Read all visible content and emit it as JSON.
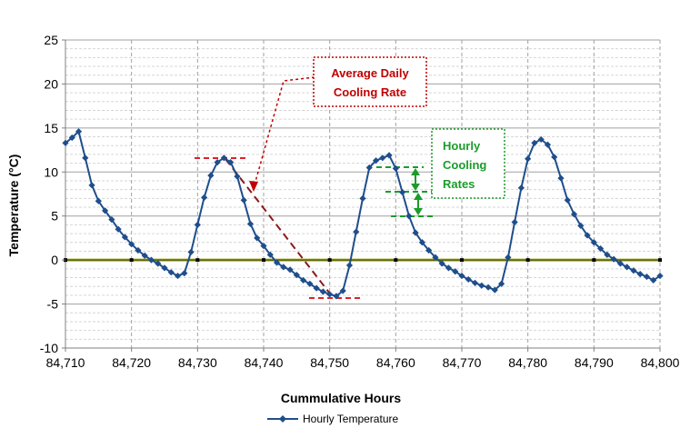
{
  "chart_data": {
    "type": "line",
    "xlabel": "Cummulative Hours",
    "ylabel": "Temperature (°C)",
    "xlim": [
      84710,
      84800
    ],
    "ylim": [
      -10,
      25
    ],
    "x_ticks": [
      "84,710",
      "84,720",
      "84,730",
      "84,740",
      "84,750",
      "84,760",
      "84,770",
      "84,780",
      "84,790",
      "84,800"
    ],
    "y_ticks": [
      "25",
      "20",
      "15",
      "10",
      "5",
      "0",
      "-5",
      "-10"
    ],
    "grid": true,
    "legend_position": "bottom",
    "series": [
      {
        "name": "Hourly Temperature",
        "color": "#1f4e8c",
        "marker": "diamond",
        "x": [
          84710,
          84711,
          84712,
          84713,
          84714,
          84715,
          84716,
          84717,
          84718,
          84719,
          84720,
          84721,
          84722,
          84723,
          84724,
          84725,
          84726,
          84727,
          84728,
          84729,
          84730,
          84731,
          84732,
          84733,
          84734,
          84735,
          84736,
          84737,
          84738,
          84739,
          84740,
          84741,
          84742,
          84743,
          84744,
          84745,
          84746,
          84747,
          84748,
          84749,
          84750,
          84751,
          84752,
          84753,
          84754,
          84755,
          84756,
          84757,
          84758,
          84759,
          84760,
          84761,
          84762,
          84763,
          84764,
          84765,
          84766,
          84767,
          84768,
          84769,
          84770,
          84771,
          84772,
          84773,
          84774,
          84775,
          84776,
          84777,
          84778,
          84779,
          84780,
          84781,
          84782,
          84783,
          84784,
          84785,
          84786,
          84787,
          84788,
          84789,
          84790,
          84791,
          84792,
          84793,
          84794,
          84795,
          84796,
          84797,
          84798,
          84799,
          84800
        ],
        "y": [
          13.3,
          13.9,
          14.6,
          11.6,
          8.5,
          6.7,
          5.6,
          4.6,
          3.5,
          2.6,
          1.8,
          1.1,
          0.5,
          0,
          -0.4,
          -0.9,
          -1.4,
          -1.8,
          -1.5,
          0.9,
          4,
          7.1,
          9.6,
          11.1,
          11.6,
          11.1,
          9.5,
          6.8,
          4.1,
          2.5,
          1.6,
          0.6,
          -0.3,
          -0.8,
          -1.1,
          -1.7,
          -2.3,
          -2.7,
          -3.2,
          -3.6,
          -3.9,
          -4.1,
          -3.5,
          -0.6,
          3.2,
          7,
          10.5,
          11.3,
          11.6,
          11.9,
          10.4,
          7.7,
          5,
          3.1,
          2,
          1.1,
          0.3,
          -0.4,
          -0.9,
          -1.3,
          -1.8,
          -2.2,
          -2.6,
          -2.9,
          -3.1,
          -3.4,
          -2.7,
          0.3,
          4.3,
          8.2,
          11.5,
          13.3,
          13.7,
          13.1,
          11.7,
          9.3,
          6.8,
          5.2,
          3.9,
          2.8,
          2,
          1.3,
          0.6,
          0.1,
          -0.4,
          -0.8,
          -1.2,
          -1.6,
          -1.9,
          -2.3,
          -1.8
        ]
      }
    ],
    "annotations": {
      "avg_daily": {
        "line1": "Average Daily",
        "line2": "Cooling Rate",
        "color": "#c00000"
      },
      "hourly": {
        "line1": "Hourly",
        "line2": "Cooling",
        "line3": "Rates",
        "color": "#1a9c2a"
      }
    }
  }
}
